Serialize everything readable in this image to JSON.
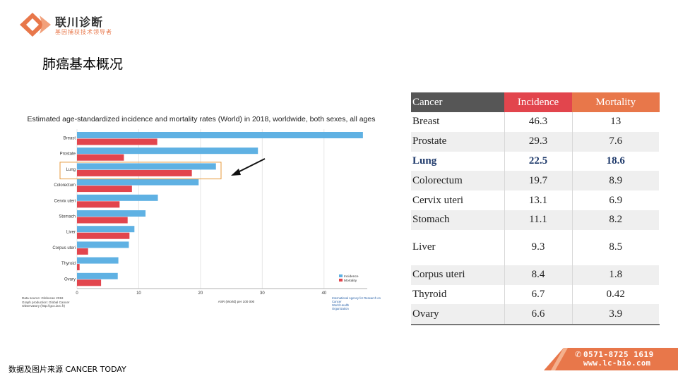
{
  "logo": {
    "name": "联川诊断",
    "tagline": "基因捕获技术领导者"
  },
  "slide_title": "肺癌基本概况",
  "chart_data": {
    "type": "bar",
    "orientation": "horizontal",
    "title": "Estimated age-standardized incidence and mortality rates (World) in 2018, worldwide, both sexes, all ages",
    "xlabel": "ASR (World) per 100 000",
    "ylabel": "",
    "xlim": [
      0,
      47
    ],
    "xticks": [
      0,
      10,
      20,
      30,
      40
    ],
    "categories": [
      "Breast",
      "Prostate",
      "Lung",
      "Colorectum",
      "Cervix uteri",
      "Stomach",
      "Liver",
      "Corpus uteri",
      "Thyroid",
      "Ovary"
    ],
    "series": [
      {
        "name": "Incidence",
        "color": "#5fb1e3",
        "values": [
          46.3,
          29.3,
          22.5,
          19.7,
          13.1,
          11.1,
          9.3,
          8.4,
          6.7,
          6.6
        ]
      },
      {
        "name": "Mortality",
        "color": "#e2454d",
        "values": [
          13,
          7.6,
          18.6,
          8.9,
          6.9,
          8.2,
          8.5,
          1.8,
          0.42,
          3.9
        ]
      }
    ],
    "highlight_category": "Lung",
    "legend_position": "bottom-right",
    "grid": true,
    "source_lines": [
      "Data source: Globocan 2018",
      "Graph production: Global Cancer",
      "Observatory (http://gco.iarc.fr)"
    ],
    "source_link_text": "http://gco.iarc.fr",
    "org_lines": [
      "International Agency for Research on Cancer",
      "World Health",
      "Organization"
    ]
  },
  "table": {
    "headers": [
      "Cancer",
      "Incidence",
      "Mortality"
    ],
    "rows": [
      [
        "Breast",
        "46.3",
        "13"
      ],
      [
        "Prostate",
        "29.3",
        "7.6"
      ],
      [
        "Lung",
        "22.5",
        "18.6"
      ],
      [
        "Colorectum",
        "19.7",
        "8.9"
      ],
      [
        "Cervix  uteri",
        "13.1",
        "6.9"
      ],
      [
        "Stomach",
        "11.1",
        "8.2"
      ],
      [
        "Liver",
        "9.3",
        "8.5"
      ],
      [
        "Corpus  uteri",
        "8.4",
        "1.8"
      ],
      [
        "Thyroid",
        "6.7",
        "0.42"
      ],
      [
        "Ovary",
        "6.6",
        "3.9"
      ]
    ]
  },
  "footer_source": "数据及图片来源  CANCER  TODAY",
  "contact": {
    "phone": "0571-8725 1619",
    "website": "www.lc-bio.com"
  },
  "colors": {
    "header_dark": "#565656",
    "header_red": "#e2454d",
    "header_orange": "#e8774a",
    "lung_text": "#1f3a6b",
    "banner": "#e8774a"
  }
}
